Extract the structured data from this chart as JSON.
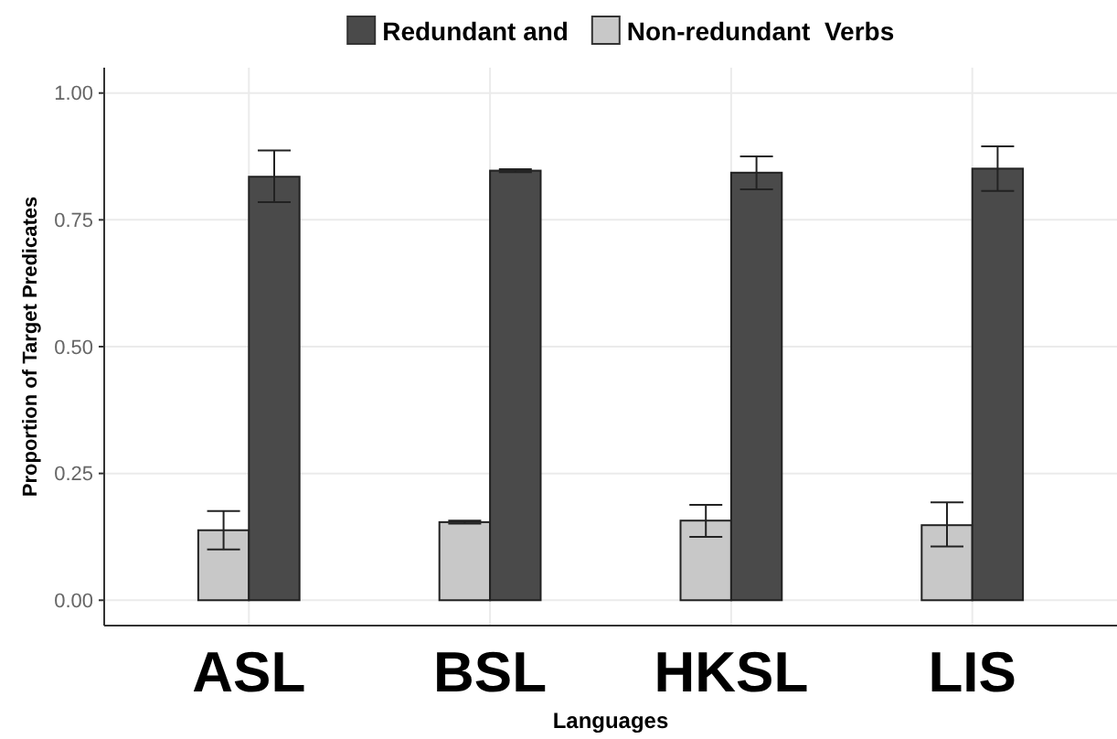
{
  "chart_data": {
    "type": "bar",
    "xlabel": "Languages",
    "ylabel": "Proportion of Target Predicates",
    "categories": [
      "ASL",
      "BSL",
      "HKSL",
      "LIS"
    ],
    "series": [
      {
        "name": "Non-redundant  Verbs",
        "color": "#c8c8c8",
        "values": [
          0.138,
          0.154,
          0.157,
          0.148
        ],
        "errors": [
          [
            0.1,
            0.176
          ],
          [
            0.151,
            0.157
          ],
          [
            0.125,
            0.188
          ],
          [
            0.106,
            0.193
          ]
        ]
      },
      {
        "name": "Redundant and",
        "color": "#4a4a4a",
        "values": [
          0.835,
          0.847,
          0.843,
          0.851
        ],
        "errors": [
          [
            0.785,
            0.887
          ],
          [
            0.844,
            0.85
          ],
          [
            0.81,
            0.875
          ],
          [
            0.807,
            0.895
          ]
        ]
      }
    ],
    "ylim": [
      -0.05,
      1.05
    ],
    "yticks": [
      {
        "value": 0,
        "label": "0.00"
      },
      {
        "value": 0.25,
        "label": "0.25"
      },
      {
        "value": 0.5,
        "label": "0.50"
      },
      {
        "value": 0.75,
        "label": "0.75"
      },
      {
        "value": 1,
        "label": "1.00"
      }
    ],
    "grid": true,
    "legend": "top"
  }
}
